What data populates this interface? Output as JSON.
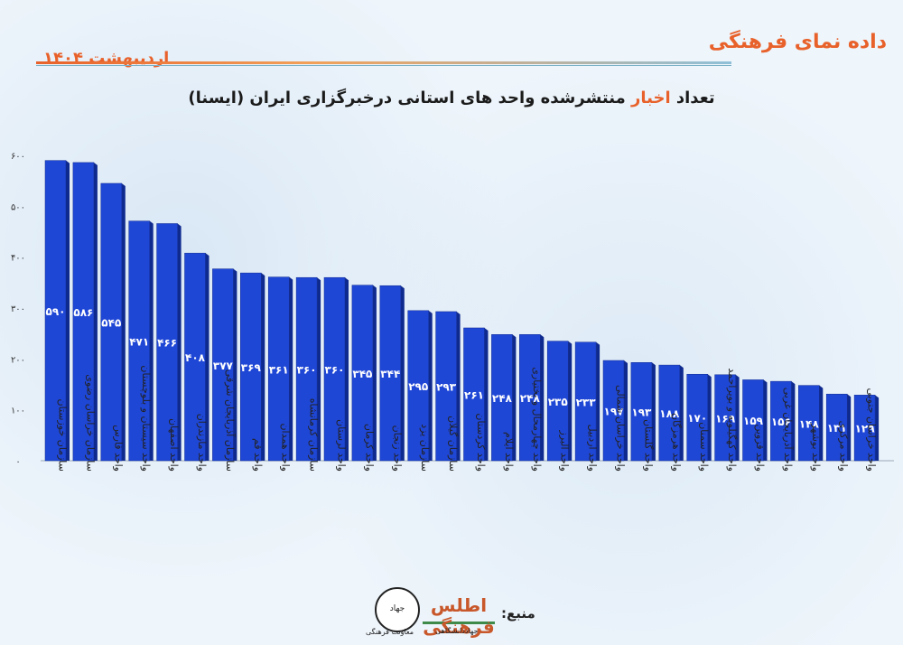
{
  "header": {
    "brand": "داده نمای فرهنگی",
    "date": "اردیبهشت ۱۴۰۴",
    "title_pre": "تعداد ",
    "title_highlight": "اخبار",
    "title_post": " منتشرشده واحد های استانی درخبرگزاری ایران (ایسنا)"
  },
  "footer": {
    "source_label": "منبع:",
    "logo_atlas": "اطلس فرهنگی",
    "logo_atlas_caption": "جهاددانشگاهی",
    "logo_jihad": "جهاد",
    "logo_jihad_caption": "معاونت فرهنگی"
  },
  "colors": {
    "bar": "#1f47d6",
    "bar_dark": "#0f2a8f",
    "accent": "#e8612a"
  },
  "chart_data": {
    "type": "bar",
    "ylim": [
      0,
      600
    ],
    "yticks": [
      0,
      100,
      200,
      300,
      400,
      500,
      600
    ],
    "ytick_labels": [
      "۰",
      "۱۰۰",
      "۲۰۰",
      "۳۰۰",
      "۴۰۰",
      "۵۰۰",
      "۶۰۰"
    ],
    "grid": false,
    "categories": [
      "سازمان خوزستان",
      "سازمان خراسان رضوی",
      "واحد فارس",
      "واحد سیستان و بلوچستان",
      "واحد اصفهان",
      "واحد مازندران",
      "سازمان آذربایجان شرقی",
      "واحد قم",
      "واحد همدان",
      "سازمان کرمانشاه",
      "واحد لرستان",
      "واحد کرمان",
      "واحد زنجان",
      "سازمان یزد",
      "سازمان گیلان",
      "واحد کردستان",
      "واحد ایلام",
      "واحد چهارمحال و بختیاری",
      "واحد البرز",
      "واحد اردبیل",
      "واحد خراسان شمالی",
      "واحد گلستان",
      "واحد هرمزگان",
      "واحد سمنان",
      "واحد کهگیلویه و بویراحمد",
      "واحد قزوین",
      "واحد آذربایجان غربی",
      "واحد بوشهر",
      "واحد مرکزی",
      "واحد خراسان جنوبی"
    ],
    "values": [
      590,
      586,
      545,
      471,
      466,
      408,
      377,
      369,
      361,
      360,
      360,
      345,
      344,
      295,
      293,
      261,
      248,
      248,
      235,
      233,
      197,
      193,
      188,
      170,
      169,
      159,
      156,
      148,
      131,
      129
    ],
    "value_labels": [
      "۵۹۰",
      "۵۸۶",
      "۵۴۵",
      "۴۷۱",
      "۴۶۶",
      "۴۰۸",
      "۳۷۷",
      "۳۶۹",
      "۳۶۱",
      "۳۶۰",
      "۳۶۰",
      "۳۴۵",
      "۳۴۴",
      "۲۹۵",
      "۲۹۳",
      "۲۶۱",
      "۲۴۸",
      "۲۴۸",
      "۲۳۵",
      "۲۳۳",
      "۱۹۷",
      "۱۹۳",
      "۱۸۸",
      "۱۷۰",
      "۱۶۹",
      "۱۵۹",
      "۱۵۶",
      "۱۴۸",
      "۱۳۱",
      "۱۲۹"
    ]
  }
}
